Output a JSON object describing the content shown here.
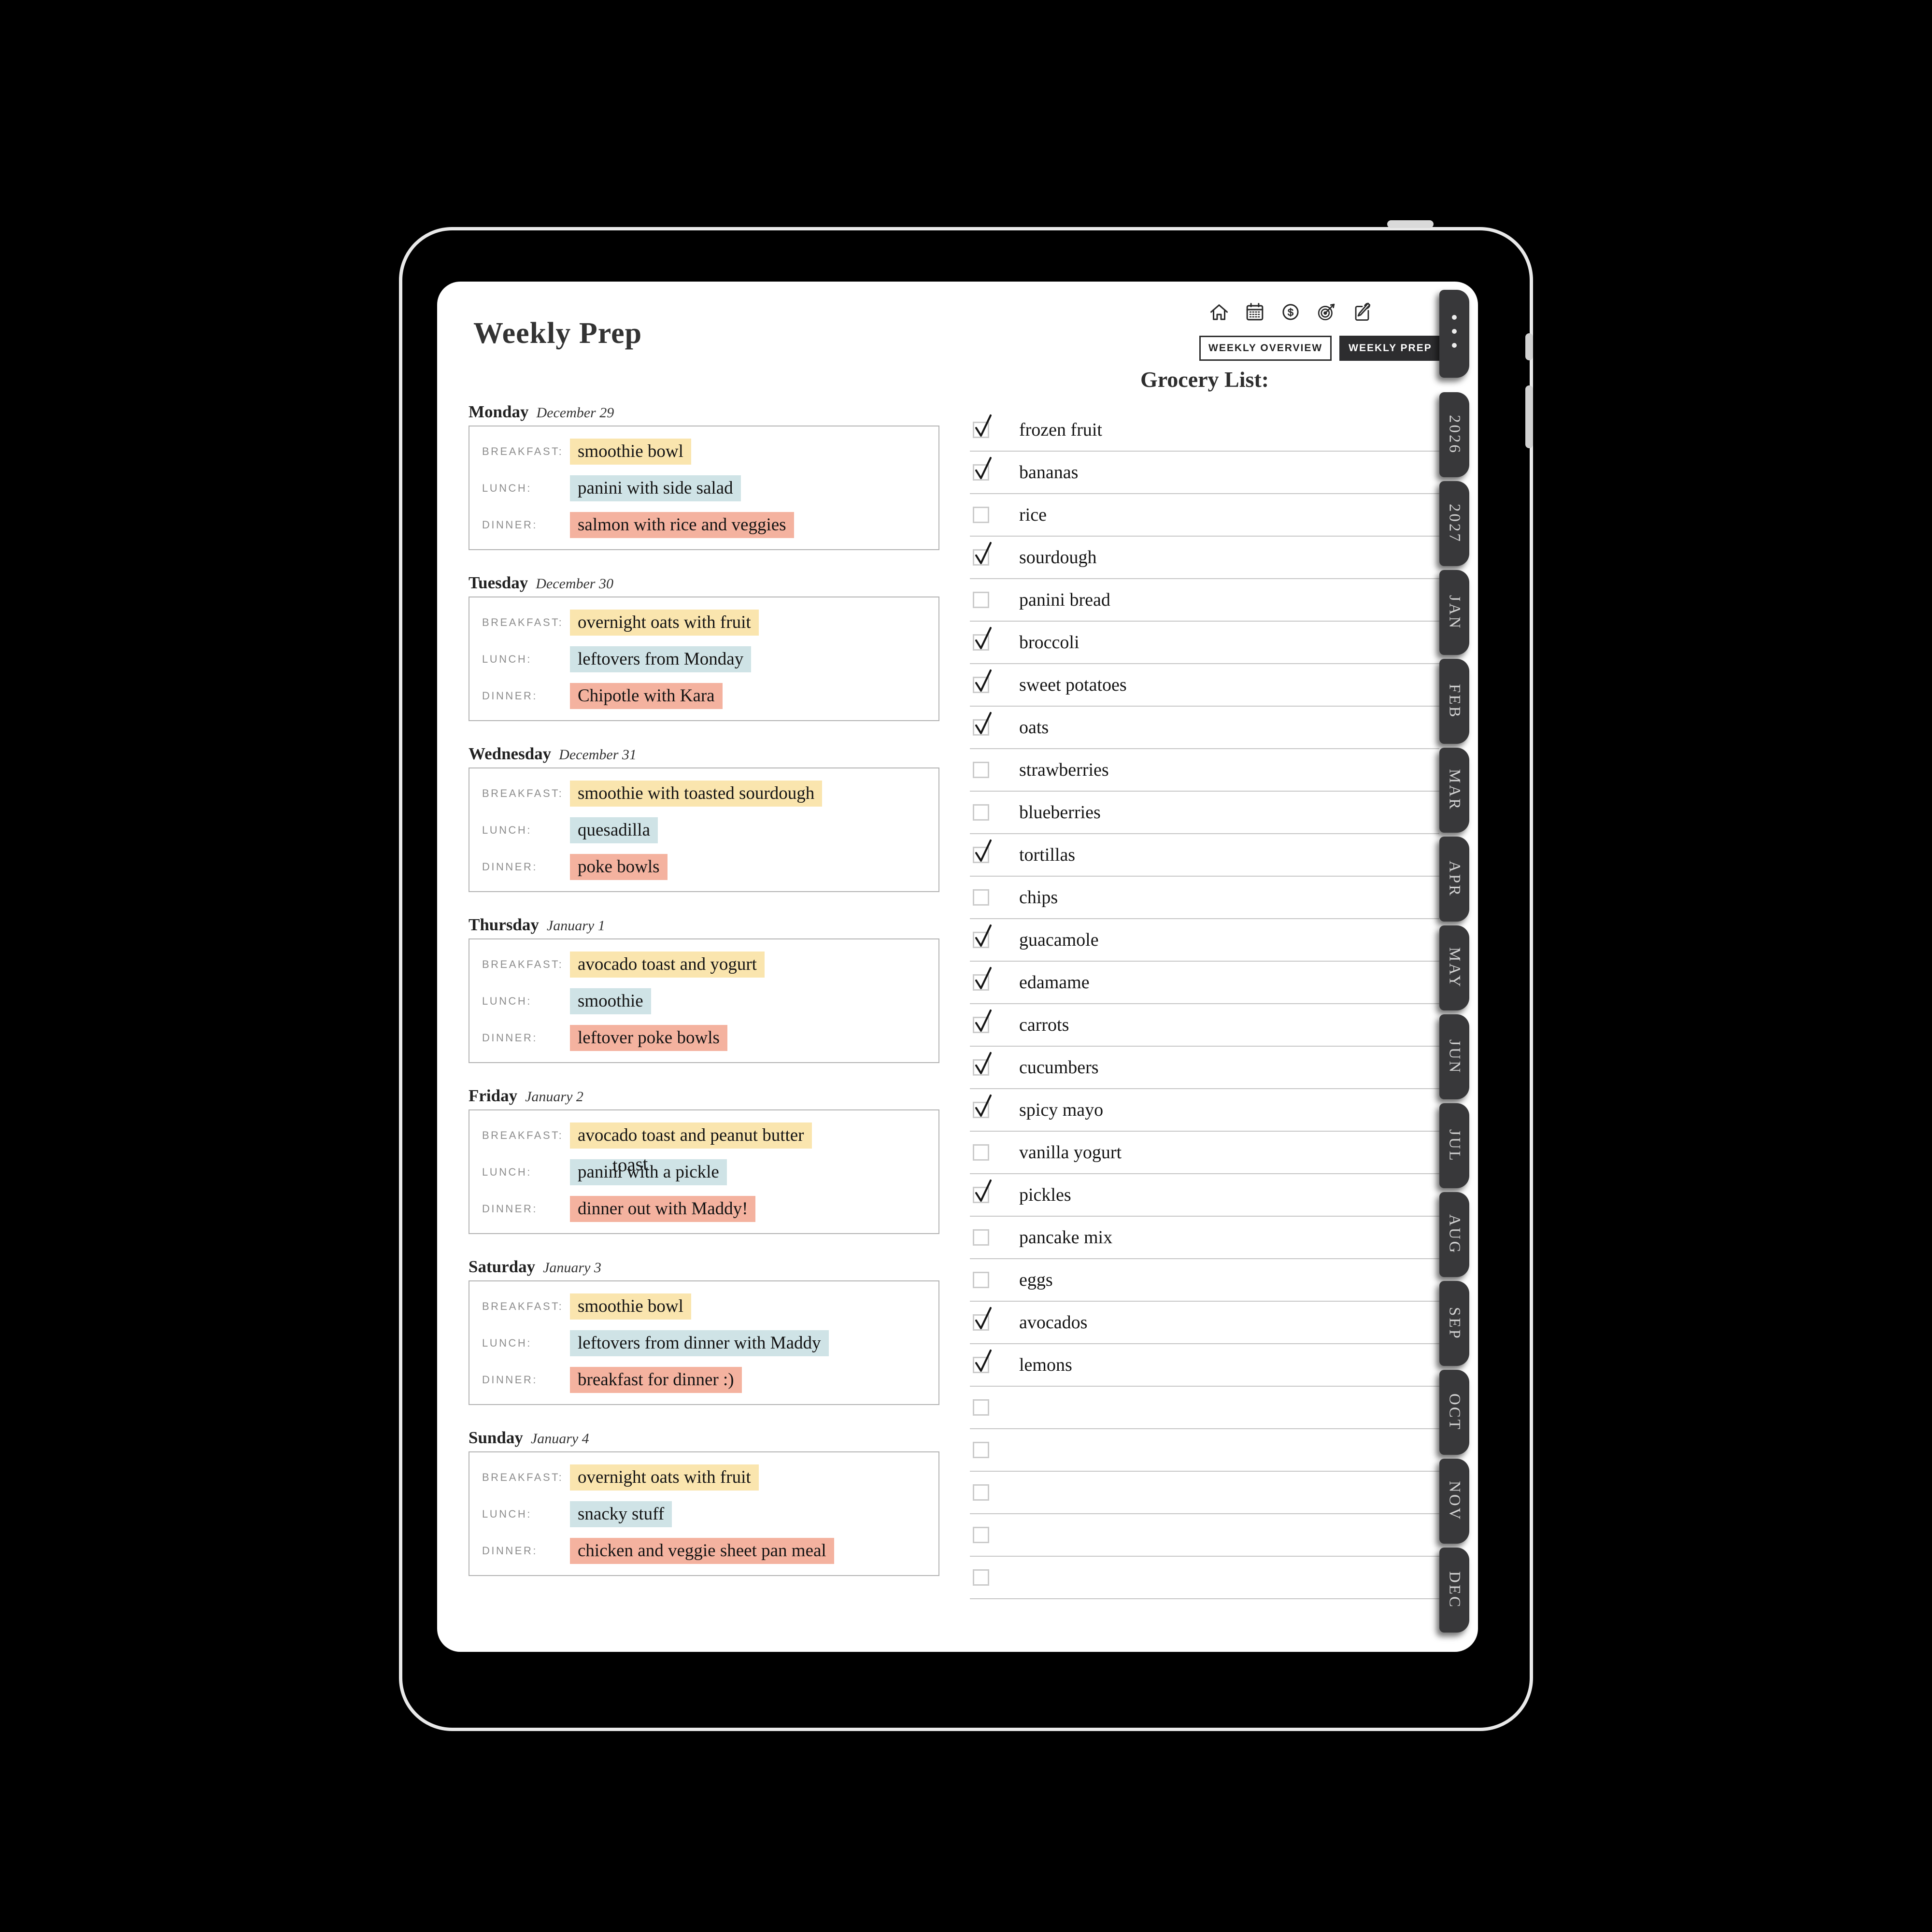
{
  "page_title": "Weekly Prep",
  "header": {
    "icons": [
      "home-icon",
      "calendar-icon",
      "dollar-icon",
      "target-icon",
      "notes-icon"
    ],
    "buttons": [
      {
        "label": "WEEKLY OVERVIEW",
        "active": false
      },
      {
        "label": "WEEKLY PREP",
        "active": true
      }
    ]
  },
  "meal_labels": {
    "breakfast": "BREAKFAST:",
    "lunch": "LUNCH:",
    "dinner": "DINNER:"
  },
  "days": [
    {
      "name": "Monday",
      "date": "December 29",
      "meals": {
        "breakfast": "smoothie bowl",
        "lunch": "panini with side salad",
        "dinner": "salmon with rice and veggies"
      }
    },
    {
      "name": "Tuesday",
      "date": "December 30",
      "meals": {
        "breakfast": "overnight oats with fruit",
        "lunch": "leftovers from Monday",
        "dinner": "Chipotle with Kara"
      }
    },
    {
      "name": "Wednesday",
      "date": "December 31",
      "meals": {
        "breakfast": "smoothie with toasted sourdough",
        "lunch": "quesadilla",
        "dinner": "poke bowls"
      }
    },
    {
      "name": "Thursday",
      "date": "January 1",
      "meals": {
        "breakfast": "avocado toast and yogurt",
        "lunch": "smoothie",
        "dinner": "leftover poke bowls"
      }
    },
    {
      "name": "Friday",
      "date": "January 2",
      "meals": {
        "breakfast": "avocado toast and peanut butter",
        "lunch": "panini with a pickle",
        "dinner": "dinner out with Maddy!"
      },
      "lunch_overlay": "toast"
    },
    {
      "name": "Saturday",
      "date": "January 3",
      "meals": {
        "breakfast": "smoothie bowl",
        "lunch": "leftovers from dinner with Maddy",
        "dinner": "breakfast for dinner :)"
      }
    },
    {
      "name": "Sunday",
      "date": "January 4",
      "meals": {
        "breakfast": "overnight oats with fruit",
        "lunch": "snacky stuff",
        "dinner": "chicken and veggie sheet pan meal"
      }
    }
  ],
  "grocery": {
    "title": "Grocery List:",
    "items": [
      {
        "text": "frozen fruit",
        "checked": true
      },
      {
        "text": "bananas",
        "checked": true
      },
      {
        "text": "rice",
        "checked": false
      },
      {
        "text": "sourdough",
        "checked": true
      },
      {
        "text": "panini bread",
        "checked": false
      },
      {
        "text": "broccoli",
        "checked": true
      },
      {
        "text": "sweet potatoes",
        "checked": true
      },
      {
        "text": "oats",
        "checked": true
      },
      {
        "text": "strawberries",
        "checked": false
      },
      {
        "text": "blueberries",
        "checked": false
      },
      {
        "text": "tortillas",
        "checked": true
      },
      {
        "text": "chips",
        "checked": false
      },
      {
        "text": "guacamole",
        "checked": true
      },
      {
        "text": "edamame",
        "checked": true
      },
      {
        "text": "carrots",
        "checked": true
      },
      {
        "text": "cucumbers",
        "checked": true
      },
      {
        "text": "spicy mayo",
        "checked": true
      },
      {
        "text": "vanilla yogurt",
        "checked": false
      },
      {
        "text": "pickles",
        "checked": true
      },
      {
        "text": "pancake mix",
        "checked": false
      },
      {
        "text": "eggs",
        "checked": false
      },
      {
        "text": "avocados",
        "checked": true
      },
      {
        "text": "lemons",
        "checked": true
      },
      {
        "text": "",
        "checked": false
      },
      {
        "text": "",
        "checked": false
      },
      {
        "text": "",
        "checked": false
      },
      {
        "text": "",
        "checked": false
      },
      {
        "text": "",
        "checked": false
      }
    ]
  },
  "tabs": {
    "more_icon": "more-dots-icon",
    "months": [
      "2026",
      "2027",
      "JAN",
      "FEB",
      "MAR",
      "APR",
      "MAY",
      "JUN",
      "JUL",
      "AUG",
      "SEP",
      "OCT",
      "NOV",
      "DEC"
    ]
  },
  "colors": {
    "highlight_breakfast": "#FAE5AE",
    "highlight_lunch": "#CFE3E6",
    "highlight_dinner": "#F4B29F",
    "tab_background": "#38383A",
    "active_button_background": "#2D2D2F",
    "page_background": "#FFFFFF",
    "device_background": "#000000",
    "separator_line": "#C7C7C7"
  }
}
